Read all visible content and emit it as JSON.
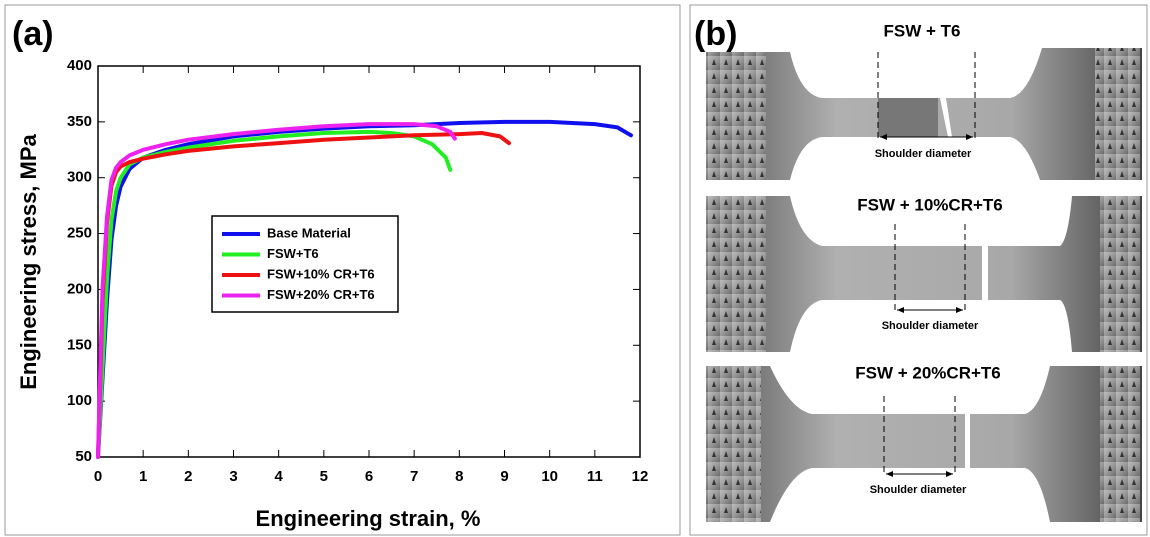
{
  "chart_data": {
    "type": "line",
    "panel_label": "(a)",
    "x_label": "Engineering strain, %",
    "y_label": "Engineering stress, MPa",
    "xlim": [
      0,
      12
    ],
    "xticks": [
      0,
      1,
      2,
      3,
      4,
      5,
      6,
      7,
      8,
      9,
      10,
      11,
      12
    ],
    "ylim": [
      50,
      400
    ],
    "yticks": [
      50,
      100,
      150,
      200,
      250,
      300,
      350,
      400
    ],
    "grid": false,
    "legend": "center",
    "series": [
      {
        "name": "Base Material",
        "color": "#1010ee",
        "x": [
          0,
          0.1,
          0.2,
          0.3,
          0.4,
          0.5,
          0.7,
          1,
          1.5,
          2,
          3,
          4,
          5,
          6,
          7,
          8,
          9,
          10,
          11,
          11.5,
          11.8
        ],
        "values": [
          50,
          120,
          190,
          245,
          275,
          292,
          308,
          318,
          325,
          330,
          337,
          341,
          344,
          346,
          347,
          349,
          350,
          350,
          348,
          345,
          338
        ]
      },
      {
        "name": "FSW+T6",
        "color": "#22ee22",
        "x": [
          0,
          0.1,
          0.2,
          0.3,
          0.4,
          0.5,
          0.7,
          1,
          1.5,
          2,
          3,
          4,
          5,
          6,
          6.5,
          7,
          7.4,
          7.7,
          7.8
        ],
        "values": [
          50,
          130,
          210,
          262,
          288,
          300,
          312,
          318,
          323,
          327,
          333,
          337,
          340,
          341,
          340,
          337,
          330,
          318,
          307
        ]
      },
      {
        "name": "FSW+10% CR+T6",
        "color": "#ee1111",
        "x": [
          0,
          0.05,
          0.1,
          0.2,
          0.3,
          0.4,
          0.5,
          0.7,
          1,
          1.5,
          2,
          3,
          4,
          5,
          6,
          7,
          8,
          8.5,
          8.9,
          9.1
        ],
        "values": [
          50,
          120,
          190,
          260,
          293,
          305,
          310,
          314,
          317,
          321,
          324,
          328,
          331,
          334,
          336,
          338,
          339,
          340,
          337,
          331
        ]
      },
      {
        "name": "FSW+20% CR+T6",
        "color": "#ee22ee",
        "x": [
          0,
          0.05,
          0.1,
          0.2,
          0.3,
          0.4,
          0.5,
          0.7,
          1,
          1.5,
          2,
          3,
          4,
          5,
          6,
          7,
          7.5,
          7.8,
          7.9
        ],
        "values": [
          50,
          130,
          200,
          265,
          298,
          309,
          314,
          320,
          325,
          330,
          334,
          339,
          343,
          346,
          348,
          348,
          346,
          341,
          335
        ]
      }
    ]
  },
  "panel_b": {
    "label": "(b)",
    "specimens": [
      {
        "title": "FSW + T6",
        "note": "Shoulder diameter"
      },
      {
        "title": "FSW + 10%CR+T6",
        "note": "Shoulder diameter"
      },
      {
        "title": "FSW + 20%CR+T6",
        "note": "Shoulder diameter"
      }
    ]
  }
}
